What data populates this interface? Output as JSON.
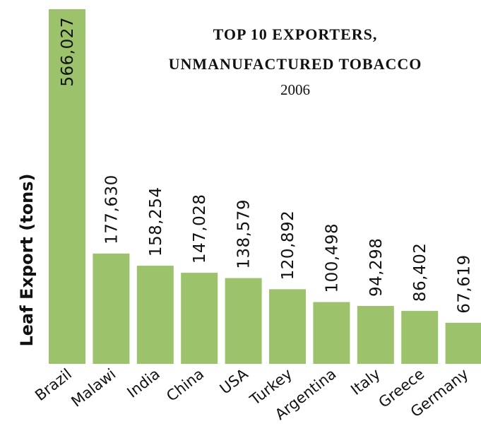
{
  "chart_data": {
    "type": "bar",
    "title_lines": [
      "TOP 10 EXPORTERS,",
      "UNMANUFACTURED TOBACCO"
    ],
    "subtitle": "2006",
    "xlabel": "",
    "ylabel": "Leaf Export (tons)",
    "categories": [
      "Brazil",
      "Malawi",
      "India",
      "China",
      "USA",
      "Turkey",
      "Argentina",
      "Italy",
      "Greece",
      "Germany"
    ],
    "values": [
      566027,
      177630,
      158254,
      147028,
      138579,
      120892,
      100498,
      94298,
      86402,
      67619
    ],
    "value_labels": [
      "566,027",
      "177,630",
      "158,254",
      "147,028",
      "138,579",
      "120,892",
      "100,498",
      "94,298",
      "86,402",
      "67,619"
    ],
    "ylim": [
      0,
      566027
    ],
    "grid": false,
    "legend": "none",
    "colors": {
      "bar_fill": "#9dc26c",
      "bar_stroke": "#ffffff",
      "text": "#111111"
    }
  }
}
